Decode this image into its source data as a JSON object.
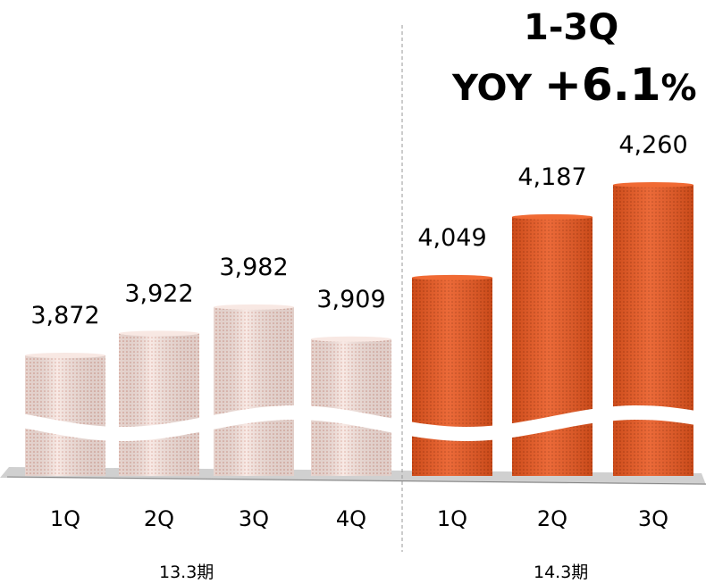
{
  "headline": {
    "line1": "1-3Q",
    "line2_prefix": "YOY ",
    "line2_value": "+6.1",
    "line2_suffix": "%"
  },
  "periods": [
    "13.3期",
    "14.3期"
  ],
  "colors": {
    "prior_year_fill": "#f4dcd6",
    "prior_year_dot": "#d98f80",
    "current_year_fill": "#e8531c",
    "current_year_dot": "#b9360a",
    "divider": "#999999"
  },
  "chart_data": {
    "type": "bar",
    "categories": [
      "1Q",
      "2Q",
      "3Q",
      "4Q",
      "1Q",
      "2Q",
      "3Q"
    ],
    "groups": [
      "13.3期",
      "13.3期",
      "13.3期",
      "13.3期",
      "14.3期",
      "14.3期",
      "14.3期"
    ],
    "values": [
      3872,
      3922,
      3982,
      3909,
      4049,
      4187,
      4260
    ],
    "value_labels": [
      "3,872",
      "3,922",
      "3,982",
      "3,909",
      "4,049",
      "4,187",
      "4,260"
    ],
    "title": "",
    "xlabel": "",
    "ylabel": "",
    "axis_break": true,
    "grid": false
  }
}
